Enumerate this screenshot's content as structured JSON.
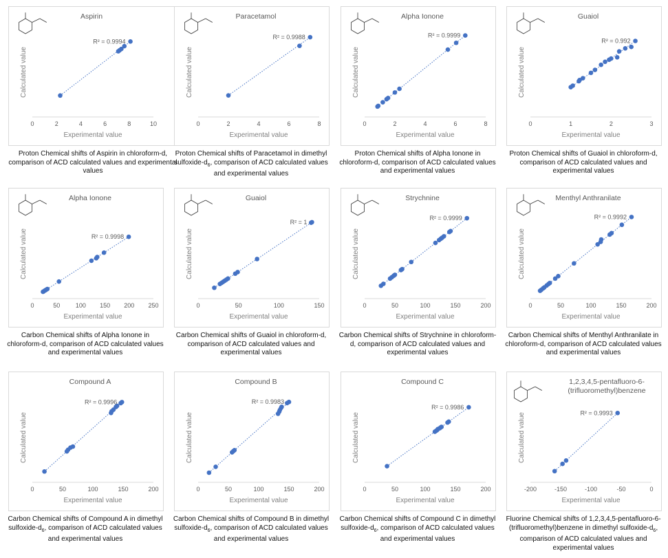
{
  "colors": {
    "marker": "#4472c4",
    "trendline": "#4472c4",
    "axis": "#d9d9d9",
    "text": "#595959"
  },
  "chart_data": [
    {
      "type": "scatter",
      "title": "Aspirin",
      "structure": true,
      "xlabel": "Experimental value",
      "ylabel": "Calculated value",
      "xlim": [
        0,
        10
      ],
      "xticks": [
        0,
        2,
        4,
        6,
        8,
        10
      ],
      "ylim": [
        0,
        9.6
      ],
      "r2_label": "R² = 0.9994",
      "trendline": "linear, dotted",
      "x": [
        2.3,
        7.1,
        7.2,
        7.35,
        7.6,
        8.1
      ],
      "y": [
        2.3,
        7.05,
        7.15,
        7.3,
        7.6,
        8.1
      ],
      "caption": {
        "pre": "Proton Chemical shifts of Aspirin in chloroform-d, comparison of ACD calculated  values and experimental values",
        "sub": "",
        "post": ""
      }
    },
    {
      "type": "scatter",
      "title": "Paracetamol",
      "structure": true,
      "xlabel": "Experimental value",
      "ylabel": "Calculated value",
      "xlim": [
        0,
        8
      ],
      "xticks": [
        0,
        2,
        4,
        6,
        8
      ],
      "ylim": [
        0,
        8.3
      ],
      "r2_label": "R² = 0.9988",
      "trendline": "linear, dotted",
      "x": [
        2.0,
        6.7,
        7.4
      ],
      "y": [
        2.0,
        6.6,
        7.4
      ],
      "caption": {
        "pre": "Proton Chemical shifts of Paracetamol in dimethyl sulfoxide-d",
        "sub": "6",
        "post": ", comparison of ACD calculated values and  experimental values"
      }
    },
    {
      "type": "scatter",
      "title": "Alpha Ionone",
      "structure": true,
      "xlabel": "Experimental value",
      "ylabel": "Calculated value",
      "xlim": [
        0,
        8
      ],
      "xticks": [
        0,
        2,
        4,
        6,
        8
      ],
      "ylim": [
        0,
        7.3
      ],
      "r2_label": "R² = 0.9999",
      "trendline": "linear, dotted",
      "x": [
        0.85,
        0.9,
        1.2,
        1.45,
        1.55,
        2.0,
        2.3,
        5.5,
        6.05,
        6.65
      ],
      "y": [
        0.85,
        0.9,
        1.2,
        1.45,
        1.55,
        2.0,
        2.3,
        5.5,
        6.05,
        6.65
      ],
      "caption": {
        "pre": "Proton Chemical shifts of Alpha Ionone in chloroform-d, comparison of ACD calculated values and  experimental values",
        "sub": "",
        "post": ""
      }
    },
    {
      "type": "scatter",
      "title": "Guaiol",
      "structure": true,
      "xlabel": "Experimental value",
      "ylabel": "Calculated value",
      "xlim": [
        0,
        3
      ],
      "xticks": [
        0,
        1,
        2,
        3
      ],
      "ylim": [
        0,
        3.0
      ],
      "r2_label": "R² = 0.992",
      "trendline": "linear, dotted",
      "x": [
        1.0,
        1.05,
        1.2,
        1.22,
        1.3,
        1.5,
        1.6,
        1.75,
        1.85,
        1.95,
        2.0,
        2.15,
        2.2,
        2.35,
        2.5,
        2.6
      ],
      "y": [
        1.0,
        1.05,
        1.2,
        1.24,
        1.3,
        1.48,
        1.58,
        1.75,
        1.85,
        1.92,
        1.96,
        2.0,
        2.2,
        2.3,
        2.35,
        2.55
      ],
      "caption": {
        "pre": "Proton Chemical shifts of Guaiol in chloroform-d, comparison of ACD calculated  values and experimental values",
        "sub": "",
        "post": ""
      }
    },
    {
      "type": "scatter",
      "title": "Alpha Ionone",
      "structure": true,
      "xlabel": "Experimental value",
      "ylabel": "Calculated value",
      "xlim": [
        0,
        250
      ],
      "xticks": [
        0,
        50,
        100,
        150,
        200,
        250
      ],
      "ylim": [
        0,
        288
      ],
      "r2_label": "R² = 0.9998",
      "trendline": "linear, dotted",
      "x": [
        22,
        23,
        25,
        27,
        28,
        31,
        55,
        122,
        132,
        134,
        148,
        199
      ],
      "y": [
        22,
        23,
        25,
        27,
        28,
        31,
        55,
        122,
        130,
        134,
        148,
        199
      ],
      "caption": {
        "pre": "Carbon Chemical shifts of Alpha Ionone in chloroform-d, comparison of ACD calculated values and  experimental values",
        "sub": "",
        "post": ""
      }
    },
    {
      "type": "scatter",
      "title": "Guaiol",
      "structure": true,
      "xlabel": "Experimental value",
      "ylabel": "Calculated value",
      "xlim": [
        0,
        150
      ],
      "xticks": [
        0,
        50,
        100,
        150
      ],
      "ylim": [
        0,
        165
      ],
      "r2_label": "R² = 1",
      "trendline": "linear, dotted",
      "x": [
        20,
        27,
        29,
        31,
        33,
        35,
        37,
        46,
        49,
        73,
        140,
        141
      ],
      "y": [
        20,
        27,
        29,
        31,
        33,
        35,
        37,
        46,
        49,
        73,
        140,
        141
      ],
      "caption": {
        "pre": "Carbon Chemical shifts of Guaiol in chloroform-d, comparison of ACD calculated  values and experimental values",
        "sub": "",
        "post": ""
      }
    },
    {
      "type": "scatter",
      "title": "Strychnine",
      "structure": true,
      "xlabel": "Experimental value",
      "ylabel": "Calculated value",
      "xlim": [
        0,
        200
      ],
      "xticks": [
        0,
        50,
        100,
        150,
        200
      ],
      "ylim": [
        0,
        188
      ],
      "r2_label": "R² = 0.9999",
      "trendline": "linear, dotted",
      "x": [
        27,
        31,
        42,
        45,
        48,
        50,
        60,
        62,
        77,
        117,
        123,
        126,
        128,
        131,
        140,
        142,
        169
      ],
      "y": [
        27,
        31,
        42,
        45,
        48,
        50,
        60,
        62,
        77,
        117,
        123,
        126,
        128,
        131,
        140,
        142,
        169
      ],
      "caption": {
        "pre": "Carbon Chemical shifts of Strychnine in chloroform-d, comparison of ACD calculated values and  experimental values",
        "sub": "",
        "post": ""
      }
    },
    {
      "type": "scatter",
      "title": "Menthyl Anthranilate",
      "structure": true,
      "xlabel": "Experimental value",
      "ylabel": "Calculated value",
      "xlim": [
        0,
        200
      ],
      "xticks": [
        0,
        50,
        100,
        150,
        200
      ],
      "ylim": [
        0,
        183
      ],
      "r2_label": "R² = 0.9992",
      "trendline": "linear, dotted",
      "x": [
        16,
        18,
        21,
        23,
        27,
        30,
        32,
        41,
        46,
        72,
        111,
        116,
        117,
        131,
        134,
        151,
        167
      ],
      "y": [
        16,
        18,
        21,
        23,
        27,
        30,
        32,
        41,
        46,
        72,
        111,
        116,
        121,
        131,
        134,
        151,
        167
      ],
      "caption": {
        "pre": "Carbon Chemical shifts of Menthyl Anthranilate in chloroform-d, comparison of ACD calculated values and  experimental values",
        "sub": "",
        "post": ""
      }
    },
    {
      "type": "scatter",
      "title": "Compound A",
      "structure": false,
      "xlabel": "Experimental value",
      "ylabel": "Calculated value",
      "xlim": [
        0,
        200
      ],
      "xticks": [
        0,
        50,
        100,
        150,
        200
      ],
      "ylim": [
        0,
        165
      ],
      "r2_label": "R² = 0.9996",
      "trendline": "linear, dotted",
      "x": [
        20,
        57,
        59,
        63,
        67,
        130,
        131,
        134,
        138,
        140,
        146,
        148
      ],
      "y": [
        20,
        57,
        60,
        64,
        66,
        128,
        131,
        134,
        139,
        141,
        146,
        148
      ],
      "caption": {
        "pre": "Carbon Chemical shifts of Compound A in dimethyl sulfoxide-d",
        "sub": "6",
        "post": ", comparison of ACD calculated  values and  experimental values"
      }
    },
    {
      "type": "scatter",
      "title": "Compound B",
      "structure": false,
      "xlabel": "Experimental value",
      "ylabel": "Calculated value",
      "xlim": [
        0,
        200
      ],
      "xticks": [
        0,
        50,
        100,
        150,
        200
      ],
      "ylim": [
        0,
        167
      ],
      "r2_label": "R² = 0.9983",
      "trendline": "linear, dotted",
      "x": [
        18,
        29,
        56,
        58,
        60,
        132,
        134,
        135,
        137,
        138,
        147,
        150
      ],
      "y": [
        18,
        29,
        56,
        58,
        60,
        128,
        132,
        135,
        139,
        141,
        148,
        150
      ],
      "caption": {
        "pre": "Carbon Chemical shifts of Compound B in dimethyl sulfoxide-d",
        "sub": "6",
        "post": ", comparison of ACD calculated  values and  experimental values"
      }
    },
    {
      "type": "scatter",
      "title": "Compound C",
      "structure": false,
      "xlabel": "Experimental value",
      "ylabel": "Calculated value",
      "xlim": [
        0,
        200
      ],
      "xticks": [
        0,
        50,
        100,
        150,
        200
      ],
      "ylim": [
        0,
        205
      ],
      "r2_label": "R² = 0.9986",
      "trendline": "linear, dotted",
      "x": [
        37,
        116,
        118,
        120,
        121,
        124,
        126,
        127,
        137,
        139,
        172
      ],
      "y": [
        37,
        116,
        118,
        120,
        122,
        124,
        126,
        127,
        137,
        139,
        172
      ],
      "caption": {
        "pre": "Carbon Chemical shifts of Compound C in dimethyl sulfoxide-d",
        "sub": "6",
        "post": ", comparison of ACD calculated  values and  experimental values"
      }
    },
    {
      "type": "scatter",
      "title": "1,2,3,4,5-pentafluoro-6-(trifluoromethyl)benzene",
      "structure": true,
      "xlabel": "Experimental value",
      "ylabel": "Calculated value",
      "xlim": [
        -200,
        0
      ],
      "xticks": [
        -200,
        -150,
        -100,
        -50,
        0
      ],
      "ylim": [
        -180,
        -20
      ],
      "r2_label": "R² = 0.9993",
      "trendline": "linear, dotted",
      "x": [
        -160,
        -147,
        -141,
        -56
      ],
      "y": [
        -160,
        -147,
        -141,
        -56
      ],
      "caption": {
        "pre": "Fluorine Chemical shifts of 1,2,3,4,5-pentafluoro-6-(trifluoromethyl)benzene in dimethyl sulfoxide-d",
        "sub": "6",
        "post": ", comparison of ACD calculated  values and experimental values"
      }
    }
  ]
}
